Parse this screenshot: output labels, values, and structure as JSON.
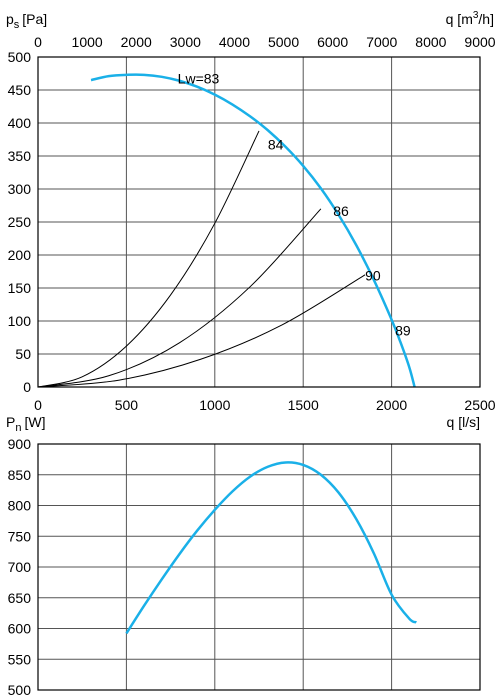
{
  "chart_data": [
    {
      "type": "line",
      "ylabel": "p",
      "ylabel_sub": "s",
      "ylabel_unit": "[Pa]",
      "xlabel": "q [l/s]",
      "top_xlabel": "q [m",
      "top_xlabel_sup": "3",
      "top_xlabel_tail": "/h]",
      "xlim": [
        0,
        2500
      ],
      "ylim": [
        0,
        500
      ],
      "top_xlim": [
        0,
        9000
      ],
      "x_ticks": [
        "0",
        "500",
        "1000",
        "1500",
        "2000",
        "2500"
      ],
      "y_ticks": [
        "0",
        "50",
        "100",
        "150",
        "200",
        "250",
        "300",
        "350",
        "400",
        "450",
        "500"
      ],
      "top_x_ticks": [
        "0",
        "1000",
        "2000",
        "3000",
        "4000",
        "5000",
        "6000",
        "7000",
        "8000",
        "9000"
      ],
      "grid": true,
      "series": [
        {
          "color": "#1ab0e8",
          "x": [
            300,
            400,
            500,
            600,
            700,
            800,
            900,
            1000,
            1100,
            1200,
            1300,
            1400,
            1500,
            1600,
            1700,
            1800,
            1900,
            2000,
            2050,
            2100,
            2130
          ],
          "y": [
            465,
            471,
            473,
            473,
            470,
            464,
            455,
            443,
            428,
            410,
            389,
            364,
            335,
            301,
            261,
            215,
            162,
            102,
            68,
            30,
            0
          ]
        },
        {
          "color": "#000000",
          "x": [
            0,
            250,
            500,
            750,
            1000,
            1250
          ],
          "y": [
            0,
            15.5,
            62,
            139.5,
            248,
            388
          ]
        },
        {
          "color": "#000000",
          "x": [
            0,
            400,
            800,
            1200,
            1600
          ],
          "y": [
            0,
            17,
            67,
            152,
            270
          ]
        },
        {
          "color": "#000000",
          "x": [
            0,
            460,
            920,
            1380,
            1850
          ],
          "y": [
            0,
            10.5,
            42,
            94,
            170
          ]
        }
      ],
      "annotations": [
        {
          "text": "Lw=83",
          "x": 790,
          "y": 460
        },
        {
          "text": "84",
          "x": 1300,
          "y": 360
        },
        {
          "text": "86",
          "x": 1670,
          "y": 259
        },
        {
          "text": "90",
          "x": 1850,
          "y": 161
        },
        {
          "text": "89",
          "x": 2020,
          "y": 78
        }
      ]
    },
    {
      "type": "line",
      "ylabel": "P",
      "ylabel_sub": "n",
      "ylabel_unit": "[W]",
      "ylim": [
        500,
        900
      ],
      "xlim": [
        0,
        2500
      ],
      "y_ticks": [
        "500",
        "550",
        "600",
        "650",
        "700",
        "750",
        "800",
        "850",
        "900"
      ],
      "grid": true,
      "series": [
        {
          "color": "#1ab0e8",
          "x": [
            500,
            600,
            700,
            800,
            900,
            1000,
            1100,
            1200,
            1300,
            1400,
            1500,
            1600,
            1700,
            1800,
            1900,
            2000,
            2100,
            2140
          ],
          "y": [
            592,
            637,
            680,
            721,
            759,
            793,
            823,
            847,
            863,
            870,
            866,
            850,
            821,
            778,
            722,
            655,
            616,
            610
          ]
        }
      ]
    }
  ]
}
